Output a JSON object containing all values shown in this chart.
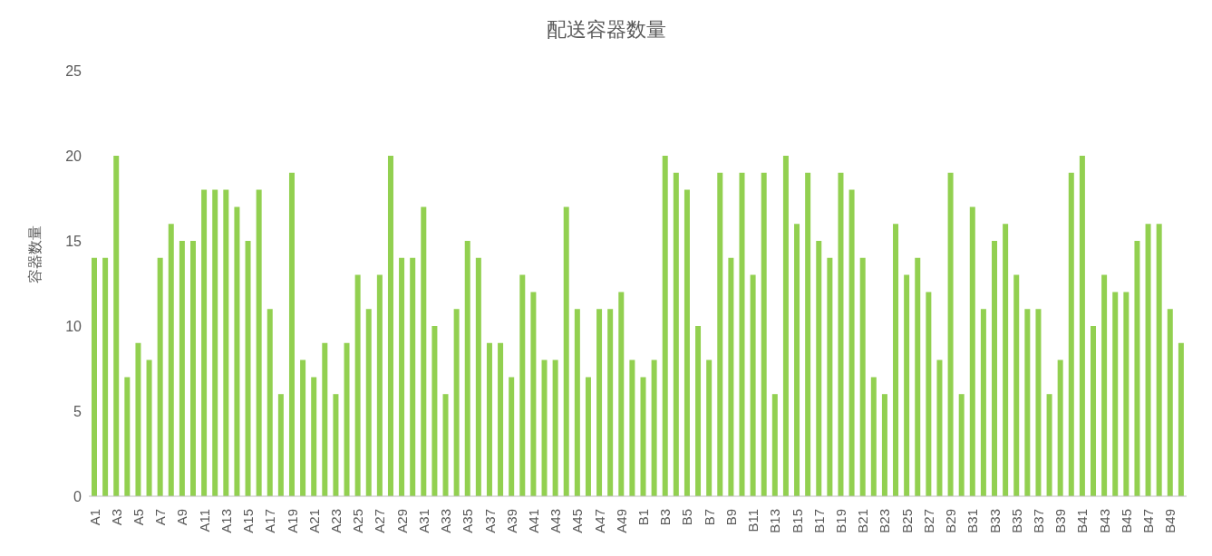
{
  "chart_data": {
    "type": "bar",
    "title": "配送容器数量",
    "ylabel": "容器数量",
    "categories": [
      "A1",
      null,
      "A3",
      null,
      "A5",
      null,
      "A7",
      null,
      "A9",
      null,
      "A11",
      null,
      "A13",
      null,
      "A15",
      null,
      "A17",
      null,
      "A19",
      null,
      "A21",
      null,
      "A23",
      null,
      "A25",
      null,
      "A27",
      null,
      "A29",
      null,
      "A31",
      null,
      "A33",
      null,
      "A35",
      null,
      "A37",
      null,
      "A39",
      null,
      "A41",
      null,
      "A43",
      null,
      "A45",
      null,
      "A47",
      null,
      "A49",
      null,
      "B1",
      null,
      "B3",
      null,
      "B5",
      null,
      "B7",
      null,
      "B9",
      null,
      "B11",
      null,
      "B13",
      null,
      "B15",
      null,
      "B17",
      null,
      "B19",
      null,
      "B21",
      null,
      "B23",
      null,
      "B25",
      null,
      "B27",
      null,
      "B29",
      null,
      "B31",
      null,
      "B33",
      null,
      "B35",
      null,
      "B37",
      null,
      "B39",
      null,
      "B41",
      null,
      "B43",
      null,
      "B45",
      null,
      "B47",
      null,
      "B49",
      null
    ],
    "values": [
      14,
      14,
      20,
      7,
      9,
      8,
      14,
      16,
      15,
      15,
      18,
      18,
      18,
      17,
      15,
      18,
      11,
      6,
      19,
      8,
      7,
      9,
      6,
      9,
      13,
      11,
      13,
      20,
      14,
      14,
      17,
      10,
      6,
      11,
      15,
      14,
      9,
      9,
      7,
      13,
      12,
      8,
      8,
      17,
      11,
      7,
      11,
      11,
      12,
      8,
      7,
      8,
      20,
      19,
      18,
      10,
      8,
      19,
      14,
      19,
      13,
      19,
      6,
      20,
      16,
      19,
      15,
      14,
      19,
      18,
      14,
      7,
      6,
      16,
      13,
      14,
      12,
      8,
      19,
      6,
      17,
      11,
      15,
      16,
      13,
      11,
      11,
      6,
      8,
      19,
      20,
      10,
      13,
      12,
      12,
      15,
      16,
      16,
      11,
      9
    ],
    "color": "#92d050",
    "ylim": [
      0,
      25
    ],
    "yticks": [
      0,
      5,
      10,
      15,
      20,
      25
    ],
    "grid": false,
    "legend": false
  }
}
